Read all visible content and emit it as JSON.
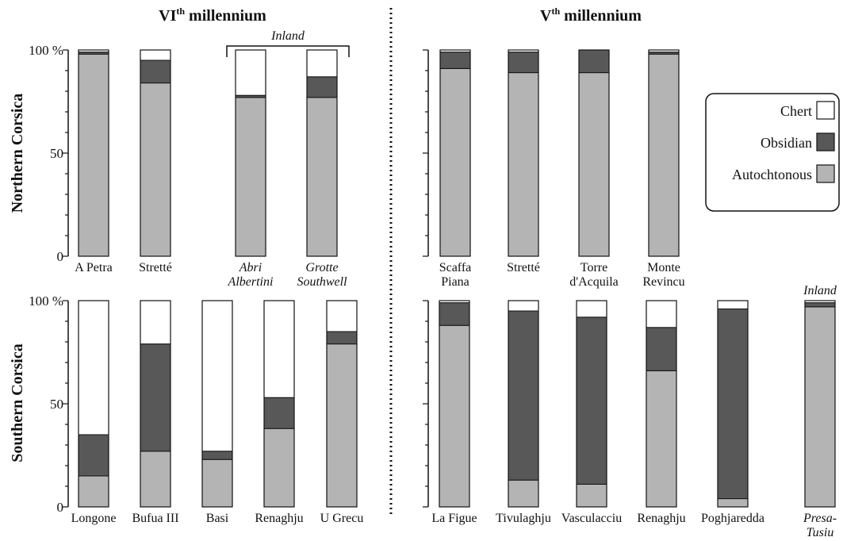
{
  "titles": {
    "left_main": "VI",
    "left_sup": "th",
    "left_rest": " millennium",
    "right_main": "V",
    "right_sup": "th",
    "right_rest": " millennium"
  },
  "rows": {
    "north": "Northern Corsica",
    "south": "Southern Corsica"
  },
  "ticks": {
    "t100": "100 %",
    "t50": "50",
    "t0": "0"
  },
  "notes": {
    "inland_north": "Inland",
    "inland_south": "Inland"
  },
  "legend": {
    "chert": "Chert",
    "obsidian": "Obsidian",
    "autochtonous": "Autochtonous"
  },
  "colors": {
    "chert": "#ffffff",
    "obsidian": "#585858",
    "autochtonous": "#b4b4b4"
  },
  "chart_data": [
    {
      "type": "bar",
      "stacked": true,
      "panel": "Northern Corsica, VIth millennium",
      "ylim": [
        0,
        100
      ],
      "ylabel": "100 %",
      "categories": [
        "A Petra",
        "Stretté",
        "Abri Albertini",
        "Grotte Southwell"
      ],
      "series": [
        {
          "name": "Autochtonous",
          "values": [
            98,
            84,
            77,
            77
          ]
        },
        {
          "name": "Obsidian",
          "values": [
            1,
            11,
            1,
            10
          ]
        },
        {
          "name": "Chert",
          "values": [
            1,
            5,
            22,
            13
          ]
        }
      ]
    },
    {
      "type": "bar",
      "stacked": true,
      "panel": "Northern Corsica, Vth millennium",
      "ylim": [
        0,
        100
      ],
      "categories": [
        "Scaffa Piana",
        "Stretté",
        "Torre d'Acquila",
        "Monte Revincu"
      ],
      "series": [
        {
          "name": "Autochtonous",
          "values": [
            91,
            89,
            89,
            98
          ]
        },
        {
          "name": "Obsidian",
          "values": [
            8,
            10,
            11,
            1
          ]
        },
        {
          "name": "Chert",
          "values": [
            1,
            1,
            0,
            1
          ]
        }
      ]
    },
    {
      "type": "bar",
      "stacked": true,
      "panel": "Southern Corsica, VIth millennium",
      "ylim": [
        0,
        100
      ],
      "ylabel": "100 %",
      "categories": [
        "Longone",
        "Bufua III",
        "Basi",
        "Renaghju",
        "U Grecu"
      ],
      "series": [
        {
          "name": "Autochtonous",
          "values": [
            15,
            27,
            23,
            38,
            79
          ]
        },
        {
          "name": "Obsidian",
          "values": [
            20,
            52,
            4,
            15,
            6
          ]
        },
        {
          "name": "Chert",
          "values": [
            65,
            21,
            73,
            47,
            15
          ]
        }
      ]
    },
    {
      "type": "bar",
      "stacked": true,
      "panel": "Southern Corsica, Vth millennium",
      "ylim": [
        0,
        100
      ],
      "categories": [
        "La Figue",
        "Tivulaghju",
        "Vasculacciu",
        "Renaghju",
        "Poghjaredda",
        "Presa-Tusiu"
      ],
      "series": [
        {
          "name": "Autochtonous",
          "values": [
            88,
            13,
            11,
            66,
            4,
            97
          ]
        },
        {
          "name": "Obsidian",
          "values": [
            11,
            82,
            81,
            21,
            92,
            2
          ]
        },
        {
          "name": "Chert",
          "values": [
            1,
            5,
            8,
            13,
            4,
            1
          ]
        }
      ]
    }
  ],
  "site_labels": {
    "n6": [
      [
        "A Petra"
      ],
      [
        "Stretté"
      ],
      [
        "Abri",
        "Albertini"
      ],
      [
        "Grotte",
        "Southwell"
      ]
    ],
    "n5": [
      [
        "Scaffa",
        "Piana"
      ],
      [
        "Stretté"
      ],
      [
        "Torre",
        "d'Acquila"
      ],
      [
        "Monte",
        "Revincu"
      ]
    ],
    "s6": [
      [
        "Longone"
      ],
      [
        "Bufua III"
      ],
      [
        "Basi"
      ],
      [
        "Renaghju"
      ],
      [
        "U Grecu"
      ]
    ],
    "s5": [
      [
        "La Figue"
      ],
      [
        "Tivulaghju"
      ],
      [
        "Vasculacciu"
      ],
      [
        "Renaghju"
      ],
      [
        "Poghjaredda"
      ],
      [
        "Presa-",
        "Tusiu"
      ]
    ]
  }
}
